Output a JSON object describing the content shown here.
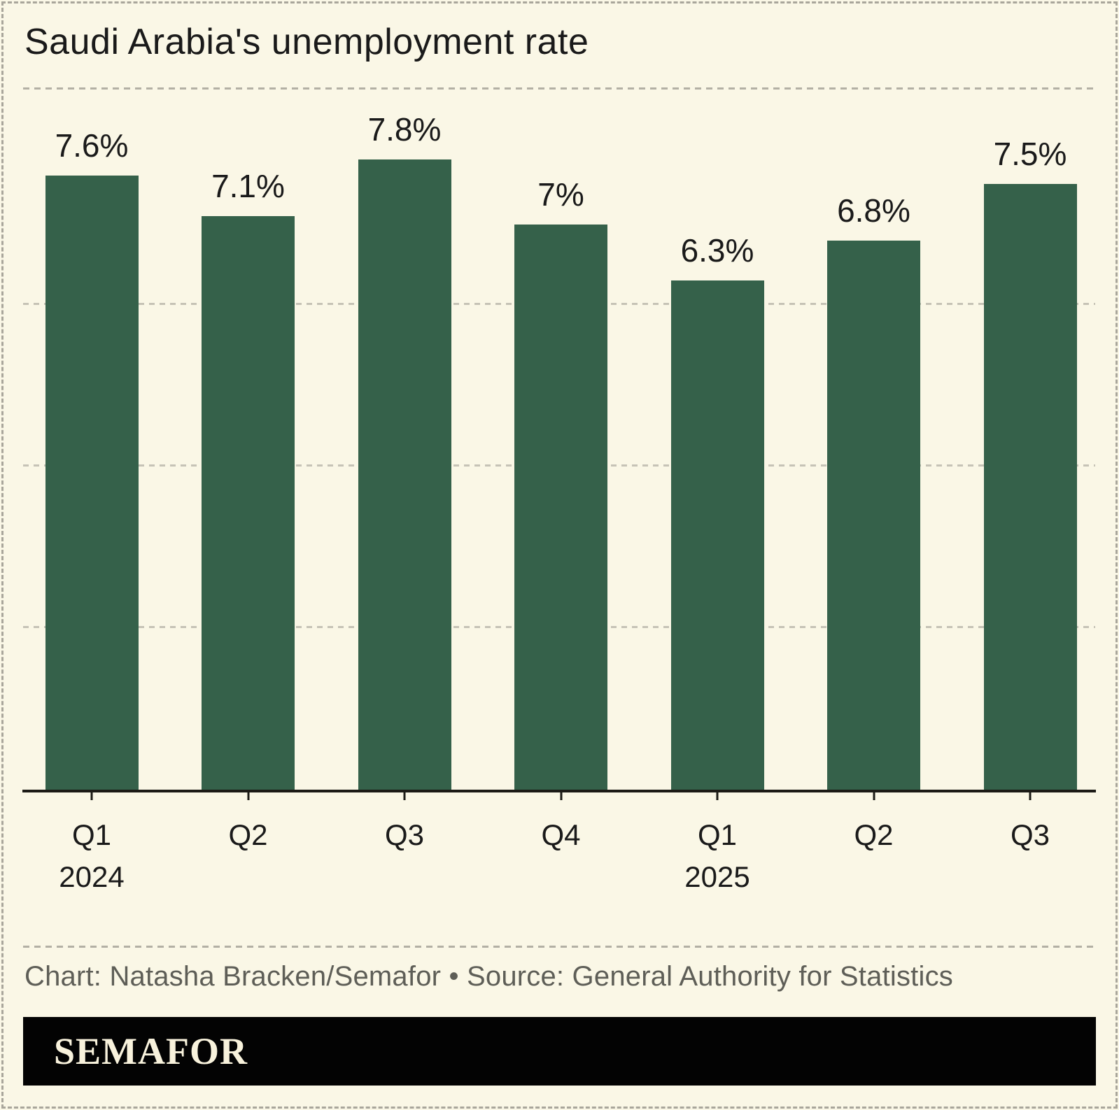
{
  "header": {
    "title": "Saudi Arabia's unemployment rate"
  },
  "chart_data": {
    "type": "bar",
    "title": "Saudi Arabia's unemployment rate",
    "categories": [
      "Q1 2024",
      "Q2 2024",
      "Q3 2024",
      "Q4 2024",
      "Q1 2025",
      "Q2 2025",
      "Q3 2025"
    ],
    "x_tick_labels": [
      "Q1",
      "Q2",
      "Q3",
      "Q4",
      "Q1",
      "Q2",
      "Q3"
    ],
    "x_year_labels": [
      {
        "index": 0,
        "label": "2024"
      },
      {
        "index": 4,
        "label": "2025"
      }
    ],
    "values": [
      7.6,
      7.1,
      7.8,
      7.0,
      6.3,
      6.8,
      7.5
    ],
    "value_labels": [
      "7.6%",
      "7.1%",
      "7.8%",
      "7%",
      "6.3%",
      "6.8%",
      "7.5%"
    ],
    "xlabel": "",
    "ylabel": "",
    "ylim": [
      0,
      8.7
    ],
    "gridlines_pct": [
      2,
      4,
      6
    ],
    "grid": "dashed-horizontal",
    "legend": "none"
  },
  "caption": {
    "text": "Chart: Natasha Bracken/Semafor • Source: General Authority for Statistics"
  },
  "footer": {
    "logo_text": "SEMAFOR"
  },
  "colors": {
    "background": "#FAF7E6",
    "bar": "#35614A",
    "ink": "#1A1A1A",
    "axis": "#1C1B16",
    "gridline": "#C6C3B6",
    "divider": "#B3B0A4",
    "outer_border": "#A9A69B",
    "caption_text": "#5E5E57",
    "footer_background": "#030303",
    "footer_text": "#F8F2DC"
  }
}
